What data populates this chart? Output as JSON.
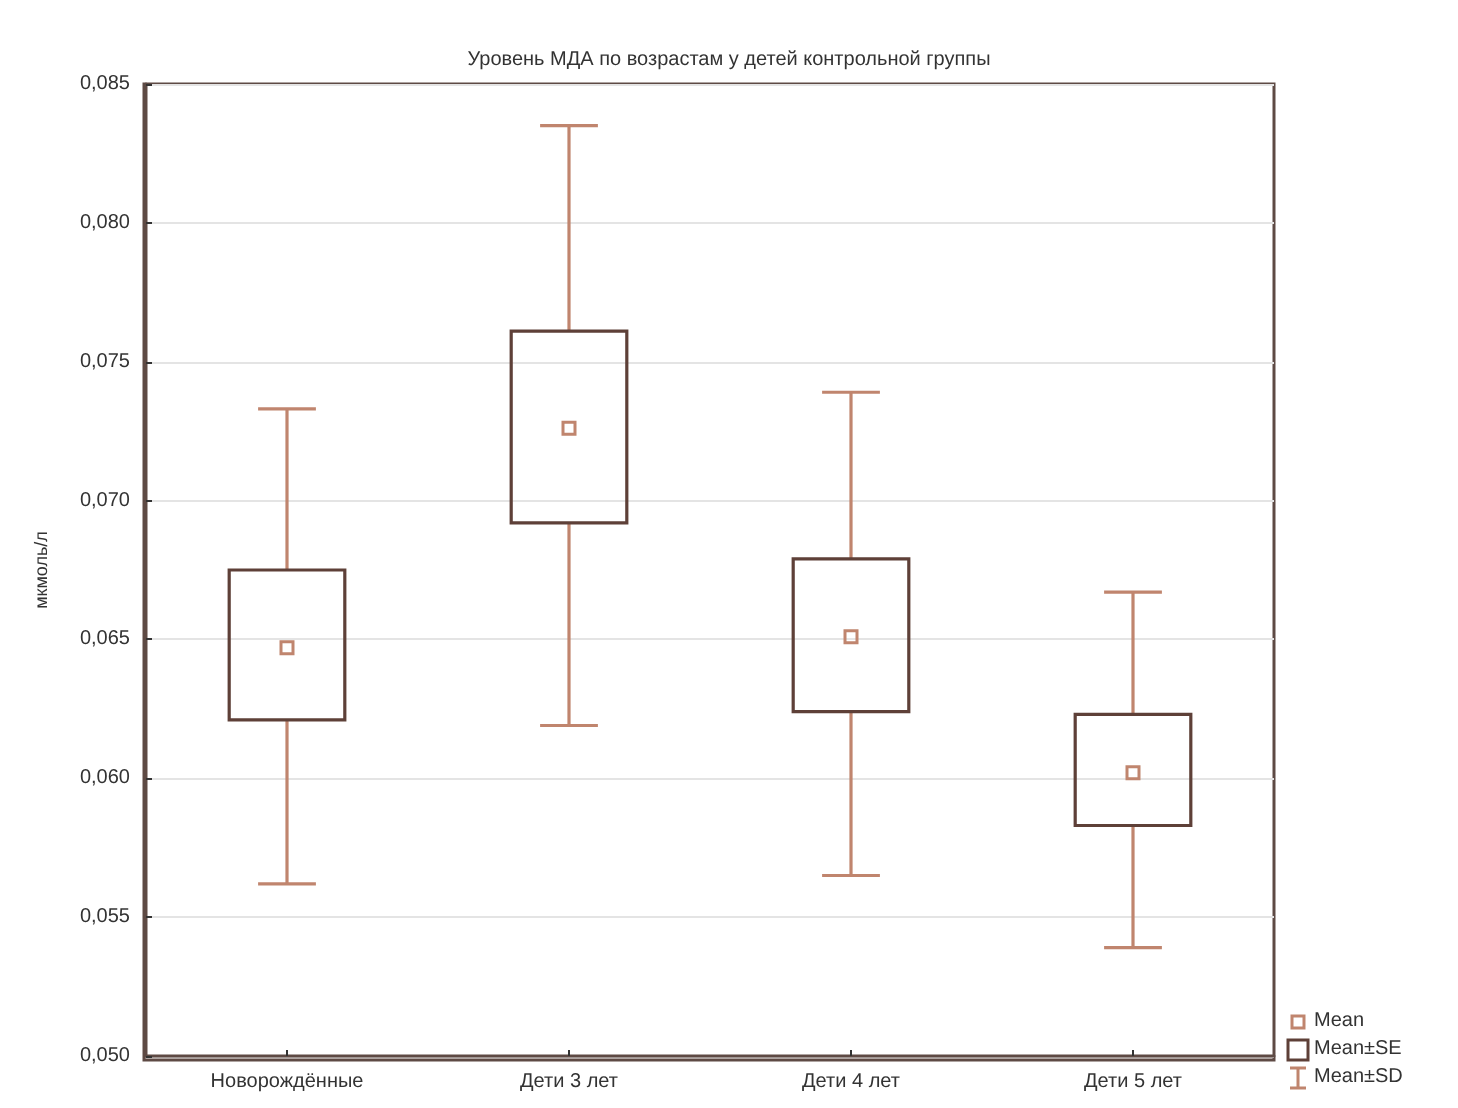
{
  "chart_data": {
    "type": "box",
    "title": "Уровень МДА по возрастам у детей контрольной группы",
    "ylabel": "мкмоль/л",
    "categories": [
      "Новорождённые",
      "Дети 3 лет",
      "Дети 4 лет",
      "Дети 5 лет"
    ],
    "series": [
      {
        "color": "#5e4038",
        "boxes": [
          {
            "low": 0.0562,
            "q1": 0.0621,
            "median": 0.0647,
            "q3": 0.0675,
            "high": 0.0733
          },
          {
            "low": 0.0619,
            "q1": 0.0692,
            "median": 0.0726,
            "q3": 0.0761,
            "high": 0.0835
          },
          {
            "low": 0.0565,
            "q1": 0.0624,
            "median": 0.0651,
            "q3": 0.0679,
            "high": 0.0739
          },
          {
            "low": 0.0539,
            "q1": 0.0583,
            "median": 0.0602,
            "q3": 0.0623,
            "high": 0.0667
          }
        ]
      }
    ],
    "ylim": [
      0.05,
      0.085
    ],
    "yticks": [
      {
        "value": 0.05,
        "label": "0,050"
      },
      {
        "value": 0.055,
        "label": "0,055"
      },
      {
        "value": 0.06,
        "label": "0,060"
      },
      {
        "value": 0.065,
        "label": "0,065"
      },
      {
        "value": 0.07,
        "label": "0,070"
      },
      {
        "value": 0.075,
        "label": "0,075"
      },
      {
        "value": 0.08,
        "label": "0,080"
      },
      {
        "value": 0.085,
        "label": "0,085"
      }
    ],
    "grid": "y",
    "annotations": [
      "Mean",
      "Mean±SE",
      "Mean±SD"
    ]
  }
}
